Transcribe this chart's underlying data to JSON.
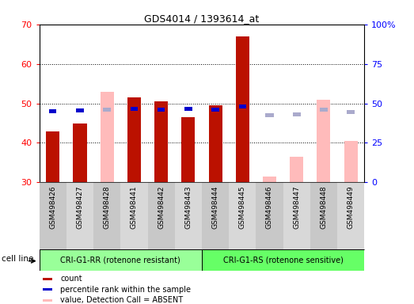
{
  "title": "GDS4014 / 1393614_at",
  "samples": [
    "GSM498426",
    "GSM498427",
    "GSM498428",
    "GSM498441",
    "GSM498442",
    "GSM498443",
    "GSM498444",
    "GSM498445",
    "GSM498446",
    "GSM498447",
    "GSM498448",
    "GSM498449"
  ],
  "groups": [
    {
      "name": "CRI-G1-RR (rotenone resistant)",
      "color": "#99ff99",
      "start": 0,
      "end": 6
    },
    {
      "name": "CRI-G1-RS (rotenone sensitive)",
      "color": "#66ff66",
      "start": 6,
      "end": 12
    }
  ],
  "count_values": [
    43.0,
    45.0,
    null,
    51.5,
    50.5,
    46.5,
    49.5,
    67.0,
    null,
    null,
    null,
    null
  ],
  "rank_values": [
    45.0,
    45.5,
    null,
    46.5,
    46.0,
    46.5,
    46.0,
    48.0,
    null,
    null,
    null,
    null
  ],
  "absent_value": [
    null,
    null,
    53.0,
    null,
    null,
    null,
    null,
    null,
    31.5,
    36.5,
    51.0,
    40.5
  ],
  "absent_rank": [
    null,
    null,
    46.0,
    null,
    null,
    null,
    null,
    null,
    42.5,
    43.0,
    46.0,
    44.5
  ],
  "ymin": 30,
  "ymax": 70,
  "y2min": 0,
  "y2max": 100,
  "yticks": [
    30,
    40,
    50,
    60,
    70
  ],
  "y2ticks": [
    0,
    25,
    50,
    75,
    100
  ],
  "y2labels": [
    "0",
    "25",
    "50",
    "75",
    "100%"
  ],
  "bar_color": "#bb1100",
  "rank_color": "#0000cc",
  "absent_bar_color": "#ffbbbb",
  "absent_rank_color": "#aaaacc",
  "group_label": "cell line",
  "legend": [
    {
      "color": "#bb1100",
      "label": "count"
    },
    {
      "color": "#0000cc",
      "label": "percentile rank within the sample"
    },
    {
      "color": "#ffbbbb",
      "label": "value, Detection Call = ABSENT"
    },
    {
      "color": "#aaaacc",
      "label": "rank, Detection Call = ABSENT"
    }
  ]
}
